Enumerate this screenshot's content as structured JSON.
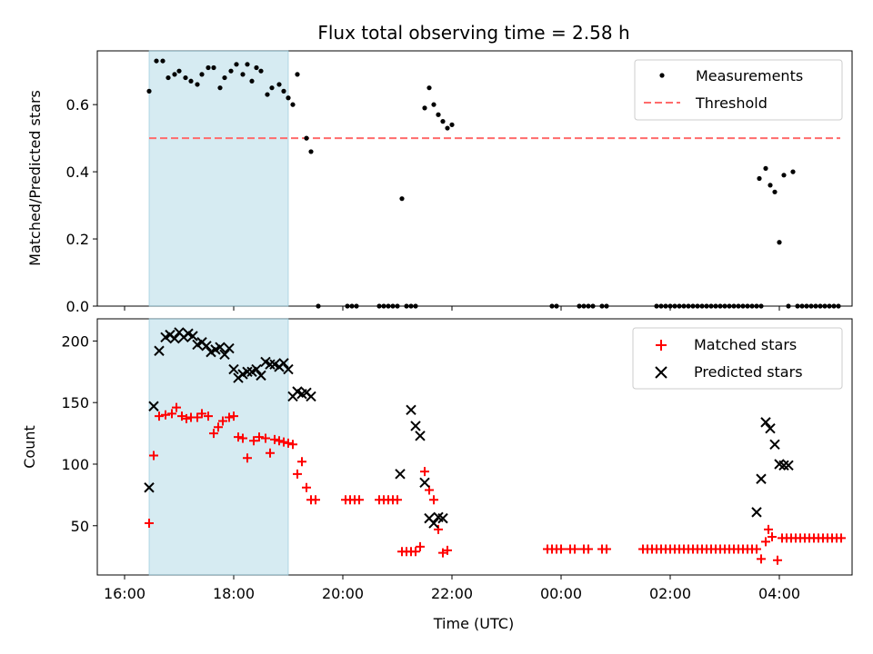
{
  "chart_data": [
    {
      "type": "scatter",
      "title": "Flux total observing time = 2.58 h",
      "ylabel": "Matched/Predicted stars",
      "xlabel": "",
      "ylim": [
        0,
        0.76
      ],
      "yticks": [
        "0.0",
        "0.2",
        "0.4",
        "0.6"
      ],
      "highlight_span": [
        "16:27",
        "19:00"
      ],
      "threshold": {
        "name": "Threshold",
        "value": 0.5,
        "x_range": [
          "16:27",
          "05:07"
        ],
        "color": "#ff6b6b"
      },
      "legend": "top-right",
      "series": [
        {
          "name": "Measurements",
          "color": "#000000",
          "marker": "dot",
          "points": [
            [
              "16:27",
              0.64
            ],
            [
              "16:35",
              0.73
            ],
            [
              "16:42",
              0.73
            ],
            [
              "16:48",
              0.68
            ],
            [
              "16:55",
              0.69
            ],
            [
              "17:00",
              0.7
            ],
            [
              "17:07",
              0.68
            ],
            [
              "17:13",
              0.67
            ],
            [
              "17:20",
              0.66
            ],
            [
              "17:25",
              0.69
            ],
            [
              "17:32",
              0.71
            ],
            [
              "17:38",
              0.71
            ],
            [
              "17:45",
              0.65
            ],
            [
              "17:50",
              0.68
            ],
            [
              "17:57",
              0.7
            ],
            [
              "18:03",
              0.72
            ],
            [
              "18:10",
              0.69
            ],
            [
              "18:15",
              0.72
            ],
            [
              "18:20",
              0.67
            ],
            [
              "18:25",
              0.71
            ],
            [
              "18:30",
              0.7
            ],
            [
              "18:37",
              0.63
            ],
            [
              "18:42",
              0.65
            ],
            [
              "18:50",
              0.66
            ],
            [
              "18:55",
              0.64
            ],
            [
              "19:00",
              0.62
            ],
            [
              "19:05",
              0.6
            ],
            [
              "19:10",
              0.69
            ],
            [
              "19:20",
              0.5
            ],
            [
              "19:25",
              0.46
            ],
            [
              "19:33",
              0.0
            ],
            [
              "20:05",
              0.0
            ],
            [
              "20:10",
              0.0
            ],
            [
              "20:15",
              0.0
            ],
            [
              "20:40",
              0.0
            ],
            [
              "20:45",
              0.0
            ],
            [
              "20:50",
              0.0
            ],
            [
              "20:55",
              0.0
            ],
            [
              "21:00",
              0.0
            ],
            [
              "21:05",
              0.32
            ],
            [
              "21:10",
              0.0
            ],
            [
              "21:15",
              0.0
            ],
            [
              "21:20",
              0.0
            ],
            [
              "21:30",
              0.59
            ],
            [
              "21:35",
              0.65
            ],
            [
              "21:40",
              0.6
            ],
            [
              "21:45",
              0.57
            ],
            [
              "21:50",
              0.55
            ],
            [
              "21:55",
              0.53
            ],
            [
              "22:00",
              0.54
            ],
            [
              "23:50",
              0.0
            ],
            [
              "23:55",
              0.0
            ],
            [
              "00:20",
              0.0
            ],
            [
              "00:25",
              0.0
            ],
            [
              "00:30",
              0.0
            ],
            [
              "00:35",
              0.0
            ],
            [
              "00:45",
              0.0
            ],
            [
              "00:50",
              0.0
            ],
            [
              "01:45",
              0.0
            ],
            [
              "01:50",
              0.0
            ],
            [
              "01:55",
              0.0
            ],
            [
              "02:00",
              0.0
            ],
            [
              "02:05",
              0.0
            ],
            [
              "02:10",
              0.0
            ],
            [
              "02:15",
              0.0
            ],
            [
              "02:20",
              0.0
            ],
            [
              "02:25",
              0.0
            ],
            [
              "02:30",
              0.0
            ],
            [
              "02:35",
              0.0
            ],
            [
              "02:40",
              0.0
            ],
            [
              "02:45",
              0.0
            ],
            [
              "02:50",
              0.0
            ],
            [
              "02:55",
              0.0
            ],
            [
              "03:00",
              0.0
            ],
            [
              "03:05",
              0.0
            ],
            [
              "03:10",
              0.0
            ],
            [
              "03:15",
              0.0
            ],
            [
              "03:20",
              0.0
            ],
            [
              "03:25",
              0.0
            ],
            [
              "03:30",
              0.0
            ],
            [
              "03:35",
              0.0
            ],
            [
              "03:40",
              0.0
            ],
            [
              "03:38",
              0.38
            ],
            [
              "03:45",
              0.41
            ],
            [
              "03:50",
              0.36
            ],
            [
              "03:55",
              0.34
            ],
            [
              "04:00",
              0.19
            ],
            [
              "04:05",
              0.39
            ],
            [
              "04:15",
              0.4
            ],
            [
              "04:10",
              0.0
            ],
            [
              "04:20",
              0.0
            ],
            [
              "04:25",
              0.0
            ],
            [
              "04:30",
              0.0
            ],
            [
              "04:35",
              0.0
            ],
            [
              "04:40",
              0.0
            ],
            [
              "04:45",
              0.0
            ],
            [
              "04:50",
              0.0
            ],
            [
              "04:55",
              0.0
            ],
            [
              "05:00",
              0.0
            ],
            [
              "05:05",
              0.0
            ]
          ]
        }
      ]
    },
    {
      "type": "scatter",
      "title": "",
      "ylabel": "Count",
      "xlabel": "Time (UTC)",
      "ylim": [
        10,
        218
      ],
      "yticks": [
        "50",
        "100",
        "150",
        "200"
      ],
      "xticks": [
        "16:00",
        "18:00",
        "20:00",
        "22:00",
        "00:00",
        "02:00",
        "04:00"
      ],
      "highlight_span": [
        "16:27",
        "19:00"
      ],
      "legend": "top-right",
      "series": [
        {
          "name": "Matched stars",
          "color": "#ff0000",
          "marker": "plus",
          "points": [
            [
              "16:27",
              52
            ],
            [
              "16:32",
              107
            ],
            [
              "16:38",
              139
            ],
            [
              "16:45",
              140
            ],
            [
              "16:52",
              141
            ],
            [
              "16:57",
              146
            ],
            [
              "17:03",
              139
            ],
            [
              "17:08",
              137
            ],
            [
              "17:13",
              138
            ],
            [
              "17:20",
              138
            ],
            [
              "17:25",
              141
            ],
            [
              "17:32",
              139
            ],
            [
              "17:38",
              125
            ],
            [
              "17:43",
              130
            ],
            [
              "17:48",
              135
            ],
            [
              "17:55",
              138
            ],
            [
              "18:00",
              139
            ],
            [
              "18:05",
              122
            ],
            [
              "18:10",
              121
            ],
            [
              "18:15",
              105
            ],
            [
              "18:22",
              119
            ],
            [
              "18:28",
              122
            ],
            [
              "18:35",
              121
            ],
            [
              "18:40",
              109
            ],
            [
              "18:45",
              120
            ],
            [
              "18:50",
              119
            ],
            [
              "18:55",
              118
            ],
            [
              "19:00",
              117
            ],
            [
              "19:05",
              116
            ],
            [
              "19:10",
              92
            ],
            [
              "19:15",
              102
            ],
            [
              "19:20",
              81
            ],
            [
              "19:25",
              71
            ],
            [
              "19:30",
              71
            ],
            [
              "20:03",
              71
            ],
            [
              "20:08",
              71
            ],
            [
              "20:13",
              71
            ],
            [
              "20:18",
              71
            ],
            [
              "20:40",
              71
            ],
            [
              "20:45",
              71
            ],
            [
              "20:50",
              71
            ],
            [
              "20:55",
              71
            ],
            [
              "21:00",
              71
            ],
            [
              "21:05",
              29
            ],
            [
              "21:10",
              29
            ],
            [
              "21:15",
              29
            ],
            [
              "21:20",
              29
            ],
            [
              "21:25",
              33
            ],
            [
              "21:30",
              94
            ],
            [
              "21:35",
              79
            ],
            [
              "21:40",
              71
            ],
            [
              "21:45",
              47
            ],
            [
              "21:50",
              28
            ],
            [
              "21:55",
              30
            ],
            [
              "23:45",
              31
            ],
            [
              "23:50",
              31
            ],
            [
              "23:55",
              31
            ],
            [
              "00:00",
              31
            ],
            [
              "00:10",
              31
            ],
            [
              "00:15",
              31
            ],
            [
              "00:25",
              31
            ],
            [
              "00:30",
              31
            ],
            [
              "00:45",
              31
            ],
            [
              "00:50",
              31
            ],
            [
              "01:30",
              31
            ],
            [
              "01:35",
              31
            ],
            [
              "01:40",
              31
            ],
            [
              "01:45",
              31
            ],
            [
              "01:50",
              31
            ],
            [
              "01:55",
              31
            ],
            [
              "02:00",
              31
            ],
            [
              "02:05",
              31
            ],
            [
              "02:10",
              31
            ],
            [
              "02:15",
              31
            ],
            [
              "02:20",
              31
            ],
            [
              "02:25",
              31
            ],
            [
              "02:30",
              31
            ],
            [
              "02:35",
              31
            ],
            [
              "02:40",
              31
            ],
            [
              "02:45",
              31
            ],
            [
              "02:50",
              31
            ],
            [
              "02:55",
              31
            ],
            [
              "03:00",
              31
            ],
            [
              "03:05",
              31
            ],
            [
              "03:10",
              31
            ],
            [
              "03:15",
              31
            ],
            [
              "03:20",
              31
            ],
            [
              "03:25",
              31
            ],
            [
              "03:30",
              31
            ],
            [
              "03:35",
              31
            ],
            [
              "03:40",
              23
            ],
            [
              "03:45",
              37
            ],
            [
              "03:48",
              47
            ],
            [
              "03:52",
              41
            ],
            [
              "03:58",
              22
            ],
            [
              "04:03",
              40
            ],
            [
              "04:08",
              40
            ],
            [
              "04:13",
              40
            ],
            [
              "04:18",
              40
            ],
            [
              "04:23",
              40
            ],
            [
              "04:28",
              40
            ],
            [
              "04:33",
              40
            ],
            [
              "04:38",
              40
            ],
            [
              "04:43",
              40
            ],
            [
              "04:48",
              40
            ],
            [
              "04:53",
              40
            ],
            [
              "04:58",
              40
            ],
            [
              "05:03",
              40
            ],
            [
              "05:08",
              40
            ]
          ]
        },
        {
          "name": "Predicted stars",
          "color": "#000000",
          "marker": "x",
          "points": [
            [
              "16:27",
              81
            ],
            [
              "16:32",
              147
            ],
            [
              "16:38",
              192
            ],
            [
              "16:45",
              203
            ],
            [
              "16:50",
              205
            ],
            [
              "16:55",
              202
            ],
            [
              "17:00",
              207
            ],
            [
              "17:05",
              203
            ],
            [
              "17:10",
              206
            ],
            [
              "17:15",
              204
            ],
            [
              "17:20",
              197
            ],
            [
              "17:25",
              199
            ],
            [
              "17:30",
              196
            ],
            [
              "17:35",
              191
            ],
            [
              "17:40",
              193
            ],
            [
              "17:45",
              195
            ],
            [
              "17:50",
              189
            ],
            [
              "17:55",
              194
            ],
            [
              "18:00",
              177
            ],
            [
              "18:05",
              170
            ],
            [
              "18:10",
              173
            ],
            [
              "18:15",
              175
            ],
            [
              "18:20",
              175
            ],
            [
              "18:25",
              177
            ],
            [
              "18:30",
              172
            ],
            [
              "18:35",
              183
            ],
            [
              "18:40",
              181
            ],
            [
              "18:45",
              181
            ],
            [
              "18:50",
              179
            ],
            [
              "18:55",
              182
            ],
            [
              "19:00",
              177
            ],
            [
              "19:05",
              155
            ],
            [
              "19:10",
              159
            ],
            [
              "19:15",
              157
            ],
            [
              "19:20",
              158
            ],
            [
              "19:25",
              155
            ],
            [
              "21:03",
              92
            ],
            [
              "21:15",
              144
            ],
            [
              "21:20",
              131
            ],
            [
              "21:25",
              123
            ],
            [
              "21:30",
              85
            ],
            [
              "21:35",
              56
            ],
            [
              "21:40",
              52
            ],
            [
              "21:45",
              57
            ],
            [
              "21:50",
              56
            ],
            [
              "03:35",
              61
            ],
            [
              "03:40",
              88
            ],
            [
              "03:45",
              134
            ],
            [
              "03:50",
              129
            ],
            [
              "03:55",
              116
            ],
            [
              "04:00",
              100
            ],
            [
              "04:05",
              99
            ],
            [
              "04:10",
              99
            ]
          ]
        }
      ]
    }
  ]
}
